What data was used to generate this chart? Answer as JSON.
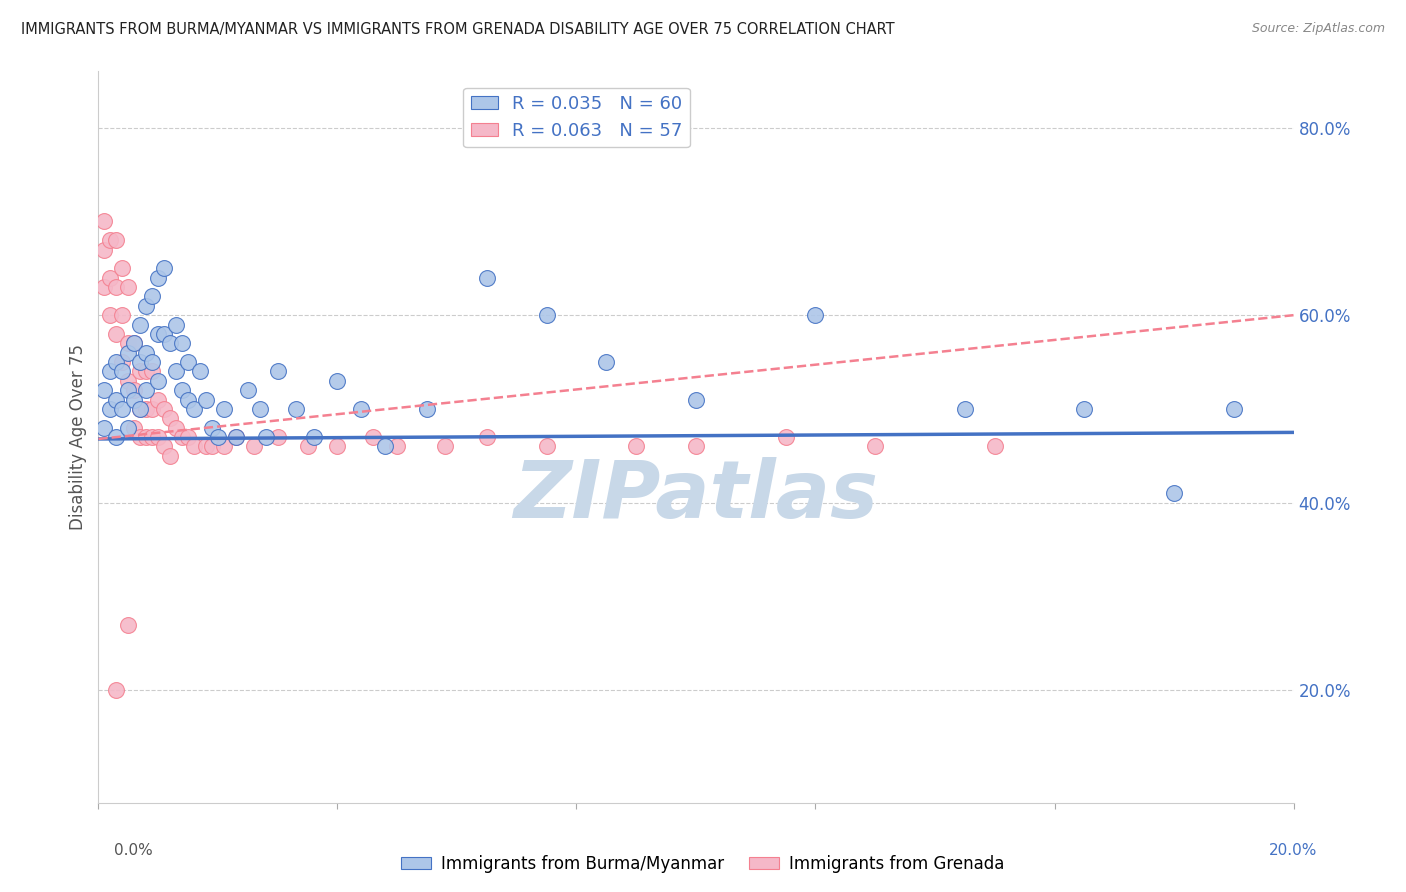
{
  "title": "IMMIGRANTS FROM BURMA/MYANMAR VS IMMIGRANTS FROM GRENADA DISABILITY AGE OVER 75 CORRELATION CHART",
  "source": "Source: ZipAtlas.com",
  "ylabel": "Disability Age Over 75",
  "legend_blue_R": "0.035",
  "legend_blue_N": "60",
  "legend_pink_R": "0.063",
  "legend_pink_N": "57",
  "legend_label_blue": "Immigrants from Burma/Myanmar",
  "legend_label_pink": "Immigrants from Grenada",
  "blue_color": "#adc6e8",
  "pink_color": "#f5b8c8",
  "blue_line_color": "#4472c4",
  "pink_line_color": "#f48090",
  "right_axis_color": "#4472c4",
  "title_color": "#222222",
  "source_color": "#888888",
  "grid_color": "#cccccc",
  "background_color": "#ffffff",
  "watermark_text": "ZIPatlas",
  "watermark_color": "#c8d8e8",
  "xlim": [
    0.0,
    0.2
  ],
  "ylim": [
    0.08,
    0.86
  ],
  "right_yticks": [
    0.2,
    0.4,
    0.6,
    0.8
  ],
  "right_yticklabels": [
    "20.0%",
    "40.0%",
    "60.0%",
    "80.0%"
  ],
  "blue_scatter_x": [
    0.001,
    0.001,
    0.002,
    0.002,
    0.003,
    0.003,
    0.003,
    0.004,
    0.004,
    0.005,
    0.005,
    0.005,
    0.006,
    0.006,
    0.007,
    0.007,
    0.007,
    0.008,
    0.008,
    0.008,
    0.009,
    0.009,
    0.01,
    0.01,
    0.01,
    0.011,
    0.011,
    0.012,
    0.013,
    0.013,
    0.014,
    0.014,
    0.015,
    0.015,
    0.016,
    0.017,
    0.018,
    0.019,
    0.02,
    0.021,
    0.023,
    0.025,
    0.027,
    0.028,
    0.03,
    0.033,
    0.036,
    0.04,
    0.044,
    0.048,
    0.055,
    0.065,
    0.075,
    0.085,
    0.1,
    0.12,
    0.145,
    0.165,
    0.18,
    0.19
  ],
  "blue_scatter_y": [
    0.52,
    0.48,
    0.54,
    0.5,
    0.55,
    0.51,
    0.47,
    0.54,
    0.5,
    0.56,
    0.52,
    0.48,
    0.57,
    0.51,
    0.59,
    0.55,
    0.5,
    0.61,
    0.56,
    0.52,
    0.62,
    0.55,
    0.64,
    0.58,
    0.53,
    0.65,
    0.58,
    0.57,
    0.59,
    0.54,
    0.57,
    0.52,
    0.55,
    0.51,
    0.5,
    0.54,
    0.51,
    0.48,
    0.47,
    0.5,
    0.47,
    0.52,
    0.5,
    0.47,
    0.54,
    0.5,
    0.47,
    0.53,
    0.5,
    0.46,
    0.5,
    0.64,
    0.6,
    0.55,
    0.51,
    0.6,
    0.5,
    0.5,
    0.41,
    0.5
  ],
  "pink_scatter_x": [
    0.001,
    0.001,
    0.001,
    0.002,
    0.002,
    0.002,
    0.003,
    0.003,
    0.003,
    0.004,
    0.004,
    0.004,
    0.005,
    0.005,
    0.005,
    0.006,
    0.006,
    0.006,
    0.007,
    0.007,
    0.007,
    0.008,
    0.008,
    0.008,
    0.009,
    0.009,
    0.009,
    0.01,
    0.01,
    0.011,
    0.011,
    0.012,
    0.012,
    0.013,
    0.014,
    0.015,
    0.016,
    0.018,
    0.019,
    0.021,
    0.023,
    0.026,
    0.03,
    0.035,
    0.04,
    0.046,
    0.05,
    0.058,
    0.065,
    0.075,
    0.09,
    0.1,
    0.115,
    0.13,
    0.15,
    0.005,
    0.003
  ],
  "pink_scatter_y": [
    0.7,
    0.67,
    0.63,
    0.68,
    0.64,
    0.6,
    0.68,
    0.63,
    0.58,
    0.65,
    0.6,
    0.55,
    0.63,
    0.57,
    0.53,
    0.57,
    0.52,
    0.48,
    0.54,
    0.5,
    0.47,
    0.54,
    0.5,
    0.47,
    0.54,
    0.5,
    0.47,
    0.51,
    0.47,
    0.5,
    0.46,
    0.49,
    0.45,
    0.48,
    0.47,
    0.47,
    0.46,
    0.46,
    0.46,
    0.46,
    0.47,
    0.46,
    0.47,
    0.46,
    0.46,
    0.47,
    0.46,
    0.46,
    0.47,
    0.46,
    0.46,
    0.46,
    0.47,
    0.46,
    0.46,
    0.27,
    0.2
  ],
  "blue_trend_x": [
    0.0,
    0.2
  ],
  "blue_trend_y": [
    0.468,
    0.475
  ],
  "pink_trend_x": [
    0.0,
    0.2
  ],
  "pink_trend_y": [
    0.468,
    0.6
  ]
}
